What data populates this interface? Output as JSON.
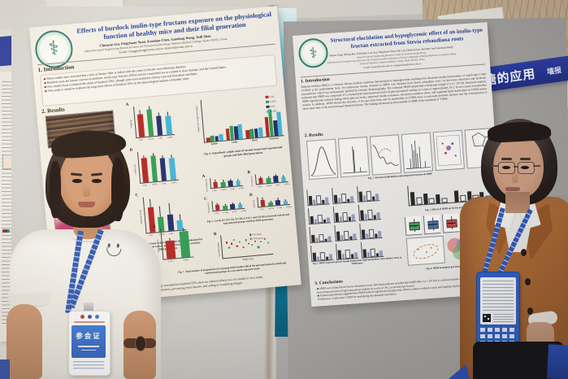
{
  "signs": {
    "right_sign_main": "糖的应用",
    "right_sign_side": "墙报"
  },
  "people": {
    "left_badge_title": "参会证"
  },
  "left_poster": {
    "title": "Effects of burdock inulin-type fructans exposure on the physiological function of healthy mice and their filial generation",
    "authors": "Chunyan Liu, Pingchuan Yuan, Kaoshan Chen, Guodong Wang, Taili Shan",
    "affiliation": "Anhui Provincial Engineering Research Center for Polysaccharide Drugs, Wannan Medical College, Wuhu 241002, China",
    "email": "E-mail: wangguodong@wnmc.edu.cn; shantaili@wnmc.edu.cn",
    "section1": "1. Introduction",
    "intro_bullets": [
      "Many studies have revealed that a lack of dietary fiber is linked with the onset of chronic non-infectious diseases.",
      "Burdock roots are known sources of prebiotic inulin-type fructans (ITFs) and are consumed raw or cooked in Asia, Europe, and the United States.",
      "Few studies have evaluated the safety of burdock ITFs, though some have looked at chicory root and Jerusalem artichoke.",
      "This study is aimed to evaluate the long-term effects of burdock ITFs on the physiological indexes of healthy mice."
    ],
    "section2": "2. Results",
    "fig1_caption": "Fig. 1. Image of the commercial fresh burdock root.",
    "fig2_caption": "Fig. 2. Chemical structure of burdock ITFs.",
    "fig3_caption": "Fig. 3. Terminal body weight (A), Length (B), and Abdominal fat (C) of the normal control and experimental groups and their filial generations.",
    "fig4_caption": "Fig. 4. Organ/body weight ratios of normal control and experimental groups and their filial generations.",
    "fig5_caption": "Fig. 5. Levels of GLU (A), TC (B), UA (C), and CK (D) of normal control and experimental groups and their filial generation.",
    "fig7_caption": "Fig. 7. Total number of pregnancies (A) and pup birth number (B) of the parental normal control and experimental groups in a six-month exposure study.",
    "conclusions": [
      "Histopathological morphology revealed that burdock ITFs show no adverse effects in a six-month in vivo study,",
      "improving physiological parameters, preventing renal disease, and aiding in combating fatigue."
    ]
  },
  "right_poster": {
    "title": "Structural elucidation and hypoglycemic effect of an inulin-type fructan extracted from Stevia rebaudiana roots",
    "authors": "Zhiyan Tang, Yulong Bai, Taili Shan, Lan Gao, Pingchuan Yuan, Wei Liu, Chunyan Liu, Jun Han* and Guodong Wang*",
    "affiliations": [
      "Anhui Provincial Engineering Research Center for Polysaccharide Drugs,",
      "Anhui Provincial Engineering Laboratory for Screening and Re-evaluation of Active Compounds of Herbal Medicines in Southern Anhui,",
      "School of Pharmacy, Wannan Medical College, Wuhu 241002, China"
    ],
    "email": "E-mail: hanjun@wnmc.edu.cn; wangguodong@wnmc.edu.cn",
    "section1": "1. Introduction",
    "intro_text": "Diabetes mellitus (DM) is a common chronic medical condition characterised by hyperglycemia resulting from abnormal insulin functionality, of which type 2 DM (T2DM) is the predominant form. An inulin-type fructan, denoted as SRRP, was obtained from Stevia rebaudiana roots via hot-water extraction and alcoholic precipitation, which was subsequently purified by column chromatography. The extracted SRRP sample had a molecular weight of 3.4 × 10⁴ Da. Structural analysis indicated that SRRP was composed of 2,1-linked-β-D-fructofuranosyl and α-D-glucopyranosyl residues in a ratio of approximately 29:1. In vivo assays revealed that SRRP significantly reduced fasting blood glucose levels, improved insulin resistance, decreased oxidative stress, and regulated lipid metabolism in T2DM mouse models. In addition, SRRP altered the diversity of the gut microbiota and its metabolites in T2DM mice; it increased probiotic bacteria and the concentration of short-chain fatty acids and decreased harmful bacteria. The findings demonstrate the potential of SRRP in the treatment of T2DM.",
    "section2": "2. Results",
    "fig1_caption": "Fig. 1. Structural elucidation and proposed structure of SRRP",
    "fig2_caption": "Fig. 2. SRRP improved glucose insulin homeostasis, lipid metabolism, and oxidative stress in T2DM mice.",
    "fig3_caption": "Fig. 3. Effects of SRRP on SCFAs in T2DM mice.",
    "fig4_caption": "Fig. 4. SRRP modulated gut microbiota in T2DM mice.",
    "section3": "3. Conclusions",
    "conclusions": [
      "SRRP was isolated from Stevia rebaudiana roots. Structural analyses revealed that SRRP (Mw 3.4 × 10⁴ Da) is a polysaccharide composed of 2,1-linked-β-D-fructofuranosyl and α-D-glucopyranosyl residues in a ratio of 29:1, an inulin-type fructan.",
      "Animal experiments suggested that SRRP induces significant hypoglycemic effects, reduces oxidative stress and regulates lipid metabolism in HFD/STZ-induced T2DM mice. It alleviates T2DM by modulating the intestinal microbiota."
    ]
  },
  "charts": {
    "palette": {
      "red": "#b5231f",
      "green": "#2e9e52",
      "navy": "#1f2c6b",
      "cyan": "#41b6d9",
      "black": "#2a2a2a",
      "slate": "#98a0c6",
      "white": "#f2f2f2"
    },
    "figA": {
      "letter": "A",
      "ylabel": "Weight (g)",
      "colors": [
        "red",
        "green",
        "navy",
        "cyan"
      ],
      "values": [
        74,
        86,
        62,
        60
      ],
      "err": [
        9,
        8,
        10,
        11
      ],
      "xticks": [
        "F-NC",
        "F-ITFs",
        "S-NC",
        "S-ITFs"
      ]
    },
    "figB": {
      "letter": "B",
      "ylabel": "Length (cm)",
      "colors": [
        "red",
        "green",
        "navy",
        "cyan"
      ],
      "values": [
        80,
        85,
        74,
        72
      ],
      "err": [
        5,
        5,
        6,
        6
      ],
      "xticks": [
        "F-NC",
        "F-ITFs",
        "S-NC",
        "S-ITFs"
      ]
    },
    "figC": {
      "letter": "C",
      "ylabel": "Abdominal fat (g)",
      "colors": [
        "red",
        "green",
        "navy",
        "cyan"
      ],
      "values": [
        70,
        42,
        46,
        27
      ],
      "err": [
        20,
        26,
        30,
        14
      ],
      "xticks": [
        "F-NC",
        "F-ITFs",
        "S-NC",
        "S-ITFs"
      ]
    },
    "organ": {
      "ylabel": "Organ/body weight ratio (mg/g)",
      "categories": [
        "Spleen",
        "Lung",
        "Heart",
        "Pancreas"
      ],
      "series": [
        {
          "name": "F-NC",
          "color": "red",
          "values": [
            10,
            27,
            20,
            46
          ]
        },
        {
          "name": "F-ITFs",
          "color": "green",
          "values": [
            14,
            33,
            21,
            64
          ]
        },
        {
          "name": "S-NC",
          "color": "navy",
          "values": [
            12,
            30,
            21,
            37
          ]
        },
        {
          "name": "S-ITFs",
          "color": "cyan",
          "values": [
            16,
            34,
            23,
            55
          ]
        }
      ]
    },
    "fig5": [
      {
        "letter": "A",
        "ylabel": "GLU (mmol/L)",
        "colors": [
          "red",
          "green",
          "navy",
          "cyan"
        ],
        "values": [
          62,
          54,
          60,
          50
        ],
        "err": [
          10,
          12,
          9,
          11
        ],
        "xticks": [
          "F-NC",
          "F-ITFs",
          "S-NC",
          "S-ITFs"
        ]
      },
      {
        "letter": "B",
        "ylabel": "TC (mmol/L)",
        "colors": [
          "red",
          "green",
          "navy",
          "cyan"
        ],
        "values": [
          58,
          48,
          64,
          52
        ],
        "err": [
          9,
          10,
          8,
          9
        ],
        "xticks": [
          "F-NC",
          "F-ITFs",
          "S-NC",
          "S-ITFs"
        ]
      },
      {
        "letter": "C",
        "ylabel": "UA (μmol/L)",
        "colors": [
          "red",
          "green",
          "navy",
          "cyan"
        ],
        "values": [
          56,
          44,
          50,
          40
        ],
        "err": [
          12,
          10,
          11,
          9
        ],
        "xticks": [
          "F-NC",
          "F-ITFs",
          "S-NC",
          "S-ITFs"
        ]
      },
      {
        "letter": "D",
        "ylabel": "CK (U/L)",
        "colors": [
          "red",
          "green",
          "navy",
          "cyan"
        ],
        "values": [
          66,
          36,
          52,
          30
        ],
        "err": [
          14,
          10,
          12,
          8
        ],
        "xticks": [
          "F-NC",
          "F-ITFs",
          "S-NC",
          "S-ITFs"
        ]
      }
    ],
    "fig7a": {
      "letter": "A",
      "ylabel": "Pregnancies (n)",
      "colors": [
        "red",
        "green"
      ],
      "values": [
        58,
        84
      ],
      "err": [
        6,
        7
      ],
      "xticks": [
        "F-NC",
        "F-ITFs"
      ]
    },
    "scatter": {
      "letter": "B",
      "xlabel": "Study days",
      "ylabel": "Pup birth number",
      "legend": [
        {
          "name": "F-NC group",
          "color": "red"
        },
        {
          "name": "F-ITFs group",
          "color": "green"
        }
      ],
      "points": [
        [
          8,
          62,
          "red"
        ],
        [
          12,
          38,
          "green"
        ],
        [
          18,
          55,
          "red"
        ],
        [
          22,
          70,
          "green"
        ],
        [
          28,
          44,
          "red"
        ],
        [
          34,
          60,
          "green"
        ],
        [
          40,
          35,
          "red"
        ],
        [
          46,
          66,
          "green"
        ],
        [
          52,
          50,
          "red"
        ],
        [
          58,
          42,
          "green"
        ],
        [
          64,
          58,
          "red"
        ],
        [
          70,
          30,
          "green"
        ],
        [
          76,
          52,
          "green"
        ],
        [
          84,
          64,
          "red"
        ],
        [
          90,
          46,
          "green"
        ]
      ]
    },
    "scfa": {
      "values": [
        66,
        38,
        54,
        30,
        46,
        24,
        60,
        34,
        50,
        28,
        42,
        20
      ]
    },
    "fig2_minis": [
      [
        60,
        34,
        50,
        26,
        42
      ],
      [
        55,
        30,
        46,
        22,
        38
      ],
      [
        64,
        38,
        52,
        28,
        44
      ],
      [
        50,
        28,
        40,
        20,
        34
      ],
      [
        58,
        32,
        48,
        24,
        40
      ],
      [
        62,
        36,
        52,
        26,
        42
      ],
      [
        48,
        26,
        38,
        18,
        32
      ],
      [
        56,
        30,
        46,
        22,
        38
      ],
      [
        60,
        34,
        50,
        24,
        40
      ],
      [
        52,
        28,
        42,
        20,
        36
      ],
      [
        58,
        32,
        46,
        24,
        38
      ],
      [
        54,
        30,
        44,
        22,
        36
      ]
    ],
    "box_colors": [
      "#3a9a55",
      "#3566b0",
      "#bb3b33",
      "#2f2f2f",
      "#8a52a0"
    ],
    "heatmap": [
      [
        "#b6362e",
        "#2c3f8f",
        "#b6362e"
      ],
      [
        "#2c3f8f",
        "#c4554e",
        "#3a4f9f"
      ],
      [
        "#c4554e",
        "#2c3f8f",
        "#b6362e"
      ],
      [
        "#2c3f8f",
        "#b6362e",
        "#3a4f9f"
      ],
      [
        "#b6362e",
        "#3a4f9f",
        "#2c3f8f"
      ],
      [
        "#3a4f9f",
        "#b6362e",
        "#c4554e"
      ],
      [
        "#2c3f8f",
        "#c4554e",
        "#2c3f8f"
      ],
      [
        "#b6362e",
        "#2c3f8f",
        "#b6362e"
      ]
    ]
  }
}
